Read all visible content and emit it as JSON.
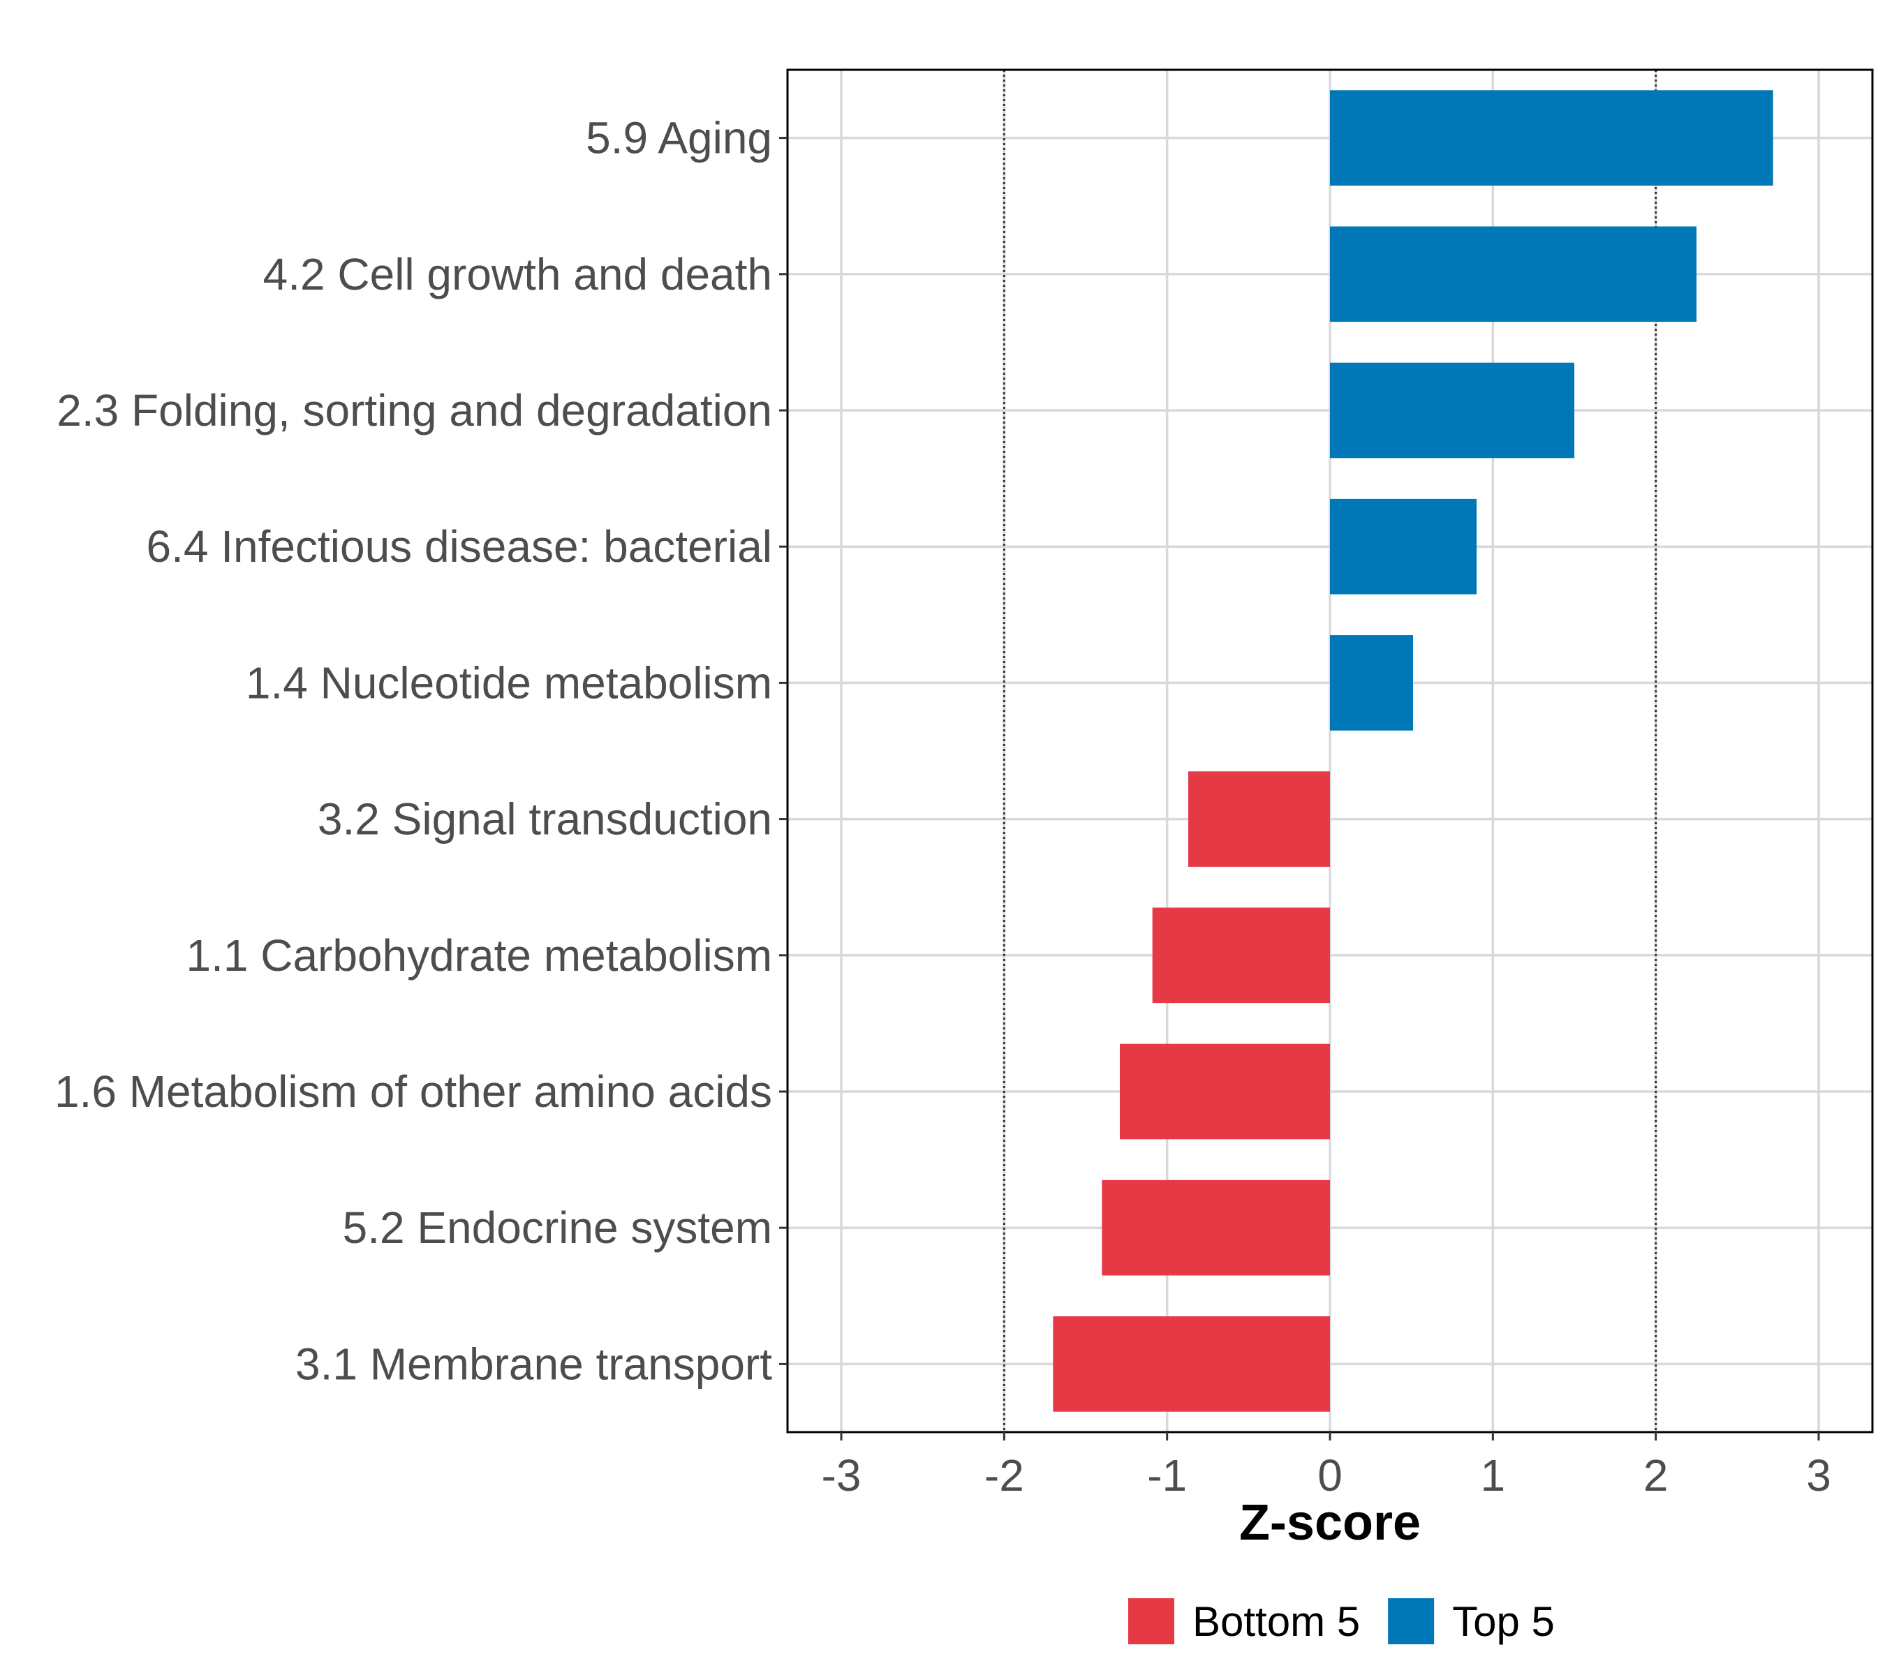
{
  "chart_data": {
    "type": "bar",
    "orientation": "horizontal",
    "categories": [
      "5.9 Aging",
      "4.2 Cell growth and death",
      "2.3 Folding, sorting and degradation",
      "6.4 Infectious disease: bacterial",
      "1.4 Nucleotide metabolism",
      "3.2 Signal transduction",
      "1.1 Carbohydrate metabolism",
      "1.6 Metabolism of other amino acids",
      "5.2 Endocrine system",
      "3.1 Membrane transport"
    ],
    "values": [
      2.72,
      2.25,
      1.5,
      0.9,
      0.51,
      -0.87,
      -1.09,
      -1.29,
      -1.4,
      -1.7
    ],
    "groups": [
      "Top 5",
      "Top 5",
      "Top 5",
      "Top 5",
      "Top 5",
      "Bottom 5",
      "Bottom 5",
      "Bottom 5",
      "Bottom 5",
      "Bottom 5"
    ],
    "xlabel": "Z-score",
    "ylabel": "",
    "xlim": [
      -3.33,
      3.33
    ],
    "xticks": [
      -3,
      -2,
      -1,
      0,
      1,
      2,
      3
    ],
    "xtick_labels": [
      "-3",
      "-2",
      "-1",
      "0",
      "1",
      "2",
      "3"
    ],
    "reference_lines": [
      -2,
      2
    ],
    "grid": true,
    "legend": {
      "position": "bottom",
      "entries": [
        {
          "label": "Bottom 5",
          "color": "#E63946"
        },
        {
          "label": "Top 5",
          "color": "#0077B6"
        }
      ]
    },
    "colors": {
      "Top 5": "#0077B6",
      "Bottom 5": "#E63946"
    }
  }
}
